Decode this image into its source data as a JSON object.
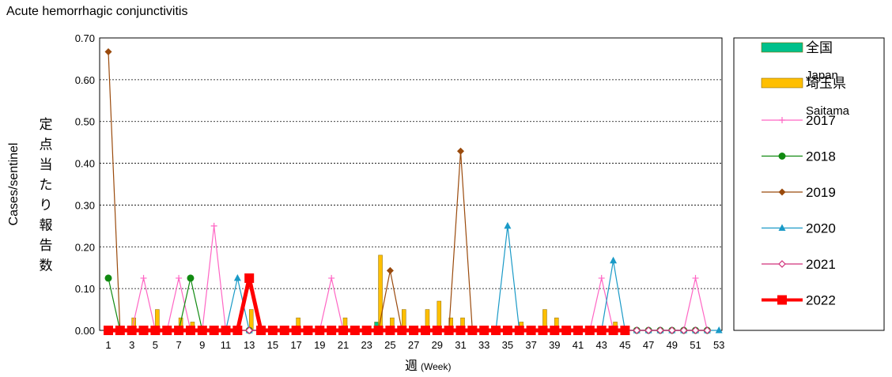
{
  "chart_data": {
    "type": "bar+line",
    "title": "Acute hemorrhagic conjunctivitis",
    "ylabel_en": "Cases/sentinel",
    "ylabel_ja": "定点当たり報告数",
    "xlabel": "週",
    "xlabel_sub": "(Week)",
    "ylim": [
      0,
      0.7
    ],
    "yticks": [
      "0.00",
      "0.10",
      "0.20",
      "0.30",
      "0.40",
      "0.50",
      "0.60",
      "0.70"
    ],
    "xlim": [
      1,
      53
    ],
    "xticks": [
      "1",
      "3",
      "5",
      "7",
      "9",
      "11",
      "13",
      "15",
      "17",
      "19",
      "21",
      "23",
      "25",
      "27",
      "29",
      "31",
      "33",
      "35",
      "37",
      "39",
      "41",
      "43",
      "45",
      "47",
      "49",
      "51",
      "53"
    ],
    "grid": "horizontal dotted",
    "legend_position": "right",
    "bar_series": [
      {
        "name": "全国",
        "name_sub": "Japan",
        "color": "#00c08b",
        "points": [
          [
            24,
            0.02
          ]
        ]
      },
      {
        "name": "埼玉県",
        "name_sub": "Saitama",
        "color": "#ffbf00",
        "points": [
          [
            3,
            0.03
          ],
          [
            5,
            0.05
          ],
          [
            7,
            0.03
          ],
          [
            8,
            0.02
          ],
          [
            13,
            0.05
          ],
          [
            17,
            0.03
          ],
          [
            21,
            0.03
          ],
          [
            24,
            0.18
          ],
          [
            25,
            0.03
          ],
          [
            26,
            0.05
          ],
          [
            28,
            0.05
          ],
          [
            29,
            0.07
          ],
          [
            30,
            0.03
          ],
          [
            31,
            0.03
          ],
          [
            36,
            0.02
          ],
          [
            38,
            0.05
          ],
          [
            39,
            0.03
          ],
          [
            44,
            0.02
          ]
        ]
      }
    ],
    "line_series": [
      {
        "name": "2017",
        "color": "#ff66c4",
        "marker": "plus",
        "x": [
          1,
          2,
          3,
          4,
          5,
          6,
          7,
          8,
          9,
          10,
          11,
          12,
          13,
          14,
          15,
          16,
          17,
          18,
          19,
          20,
          21,
          22,
          23,
          24,
          25,
          26,
          27,
          28,
          29,
          30,
          31,
          32,
          33,
          34,
          35,
          36,
          37,
          38,
          39,
          40,
          41,
          42,
          43,
          44,
          45,
          46,
          47,
          48,
          49,
          50,
          51,
          52
        ],
        "values": [
          0,
          0,
          0,
          0.125,
          0,
          0,
          0.125,
          0,
          0,
          0.25,
          0,
          0,
          0,
          0,
          0,
          0,
          0,
          0,
          0,
          0.125,
          0,
          0,
          0,
          0,
          0,
          0,
          0,
          0,
          0,
          0,
          0,
          0,
          0,
          0,
          0,
          0,
          0,
          0,
          0,
          0,
          0,
          0,
          0.125,
          0,
          0,
          0,
          0,
          0,
          0,
          0,
          0.125,
          0
        ]
      },
      {
        "name": "2018",
        "color": "#118a11",
        "marker": "circle",
        "x": [
          1,
          2,
          3,
          4,
          5,
          6,
          7,
          8,
          9,
          10,
          11,
          12,
          13,
          14,
          15,
          16,
          17,
          18,
          19,
          20,
          21,
          22,
          23,
          24,
          25,
          26,
          27,
          28,
          29,
          30,
          31,
          32,
          33,
          34,
          35,
          36,
          37,
          38,
          39,
          40,
          41,
          42,
          43,
          44,
          45,
          46,
          47,
          48,
          49,
          50,
          51,
          52
        ],
        "values": [
          0.125,
          0,
          0,
          0,
          0,
          0,
          0,
          0.125,
          0,
          0,
          0,
          0,
          0,
          0,
          0,
          0,
          0,
          0,
          0,
          0,
          0,
          0,
          0,
          0,
          0,
          0,
          0,
          0,
          0,
          0,
          0,
          0,
          0,
          0,
          0,
          0,
          0,
          0,
          0,
          0,
          0,
          0,
          0,
          0,
          0,
          0,
          0,
          0,
          0,
          0,
          0,
          0
        ]
      },
      {
        "name": "2019",
        "color": "#9a4a0c",
        "marker": "diamond",
        "x": [
          1,
          2,
          3,
          4,
          5,
          6,
          7,
          8,
          9,
          10,
          11,
          12,
          13,
          14,
          15,
          16,
          17,
          18,
          19,
          20,
          21,
          22,
          23,
          24,
          25,
          26,
          27,
          28,
          29,
          30,
          31,
          32,
          33,
          34,
          35,
          36,
          37,
          38,
          39,
          40,
          41,
          42,
          43,
          44,
          45,
          46,
          47,
          48,
          49,
          50,
          51,
          52
        ],
        "values": [
          0.667,
          0,
          0,
          0,
          0,
          0,
          0,
          0,
          0,
          0,
          0,
          0,
          0,
          0,
          0,
          0,
          0,
          0,
          0,
          0,
          0,
          0,
          0,
          0,
          0.143,
          0,
          0,
          0,
          0,
          0,
          0.429,
          0,
          0,
          0,
          0,
          0,
          0,
          0,
          0,
          0,
          0,
          0,
          0,
          0,
          0,
          0,
          0,
          0,
          0,
          0,
          0,
          0
        ]
      },
      {
        "name": "2020",
        "color": "#1a9ac7",
        "marker": "triangle",
        "x": [
          1,
          2,
          3,
          4,
          5,
          6,
          7,
          8,
          9,
          10,
          11,
          12,
          13,
          14,
          15,
          16,
          17,
          18,
          19,
          20,
          21,
          22,
          23,
          24,
          25,
          26,
          27,
          28,
          29,
          30,
          31,
          32,
          33,
          34,
          35,
          36,
          37,
          38,
          39,
          40,
          41,
          42,
          43,
          44,
          45,
          46,
          47,
          48,
          49,
          50,
          51,
          52,
          53
        ],
        "values": [
          0,
          0,
          0,
          0,
          0,
          0,
          0,
          0,
          0,
          0,
          0,
          0.125,
          0,
          0,
          0,
          0,
          0,
          0,
          0,
          0,
          0,
          0,
          0,
          0,
          0,
          0,
          0,
          0,
          0,
          0,
          0,
          0,
          0,
          0,
          0.25,
          0,
          0,
          0,
          0,
          0,
          0,
          0,
          0,
          0.167,
          0,
          0,
          0,
          0,
          0,
          0,
          0,
          0,
          0
        ]
      },
      {
        "name": "2021",
        "color": "#d0307a",
        "marker": "open-diamond",
        "x": [
          1,
          2,
          3,
          4,
          5,
          6,
          7,
          8,
          9,
          10,
          11,
          12,
          13,
          14,
          15,
          16,
          17,
          18,
          19,
          20,
          21,
          22,
          23,
          24,
          25,
          26,
          27,
          28,
          29,
          30,
          31,
          32,
          33,
          34,
          35,
          36,
          37,
          38,
          39,
          40,
          41,
          42,
          43,
          44,
          45,
          46,
          47,
          48,
          49,
          50,
          51,
          52
        ],
        "values": [
          0,
          0,
          0,
          0,
          0,
          0,
          0,
          0,
          0,
          0,
          0,
          0,
          0,
          0,
          0,
          0,
          0,
          0,
          0,
          0,
          0,
          0,
          0,
          0,
          0,
          0,
          0,
          0,
          0,
          0,
          0,
          0,
          0,
          0,
          0,
          0,
          0,
          0,
          0,
          0,
          0,
          0,
          0,
          0,
          0,
          0,
          0,
          0,
          0,
          0,
          0,
          0
        ]
      },
      {
        "name": "2022",
        "color": "#ff0000",
        "marker": "square",
        "x": [
          1,
          2,
          3,
          4,
          5,
          6,
          7,
          8,
          9,
          10,
          11,
          12,
          13,
          14,
          15,
          16,
          17,
          18,
          19,
          20,
          21,
          22,
          23,
          24,
          25,
          26,
          27,
          28,
          29,
          30,
          31,
          32,
          33,
          34,
          35,
          36,
          37,
          38,
          39,
          40,
          41,
          42,
          43,
          44,
          45
        ],
        "values": [
          0,
          0,
          0,
          0,
          0,
          0,
          0,
          0,
          0,
          0,
          0,
          0,
          0.125,
          0,
          0,
          0,
          0,
          0,
          0,
          0,
          0,
          0,
          0,
          0,
          0,
          0,
          0,
          0,
          0,
          0,
          0,
          0,
          0,
          0,
          0,
          0,
          0,
          0,
          0,
          0,
          0,
          0,
          0,
          0,
          0
        ]
      }
    ]
  }
}
